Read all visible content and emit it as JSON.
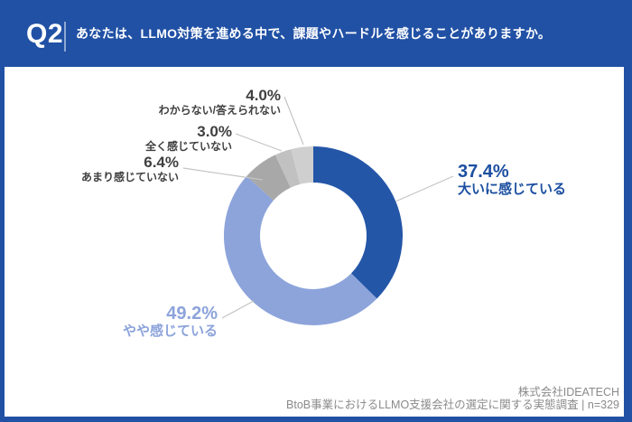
{
  "header": {
    "question_number": "Q2",
    "question_text": "あなたは、LLMO対策を進める中で、課題やハードルを感じることがありますか。"
  },
  "chart_data": {
    "type": "pie",
    "subtype": "donut",
    "title": "あなたは、LLMO対策を進める中で、課題やハードルを感じることがありますか。",
    "unit": "%",
    "start_angle_deg": 0,
    "direction": "clockwise",
    "legend_position": "callout-labels",
    "slices": [
      {
        "label": "大いに感じている",
        "value": 37.4,
        "pct": "37.4%",
        "color": "#2456A8",
        "text_color": "#1C4FA1"
      },
      {
        "label": "やや感じている",
        "value": 49.2,
        "pct": "49.2%",
        "color": "#8DA4DB",
        "text_color": "#8CA3DB"
      },
      {
        "label": "あまり感じていない",
        "value": 6.4,
        "pct": "6.4%",
        "color": "#A8A8A8",
        "text_color": "#404040"
      },
      {
        "label": "全く感じていない",
        "value": 3.0,
        "pct": "3.0%",
        "color": "#C1C1C1",
        "text_color": "#404040"
      },
      {
        "label": "わからない/答えられない",
        "value": 4.0,
        "pct": "4.0%",
        "color": "#CFCFCF",
        "text_color": "#404040"
      }
    ]
  },
  "footer": {
    "company": "株式会社IDEATECH",
    "survey_note": "BtoB事業におけるLLMO支援会社の選定に関する実態調査 | n=329"
  },
  "colors": {
    "frame_blue": "#2151A5",
    "content_bg": "#FFFFFF",
    "leader_line": "#C4C4C4",
    "footer_text": "#8A8A8A",
    "header_text": "#FFFFFF",
    "divider": "rgba(255,255,255,0.5)"
  }
}
